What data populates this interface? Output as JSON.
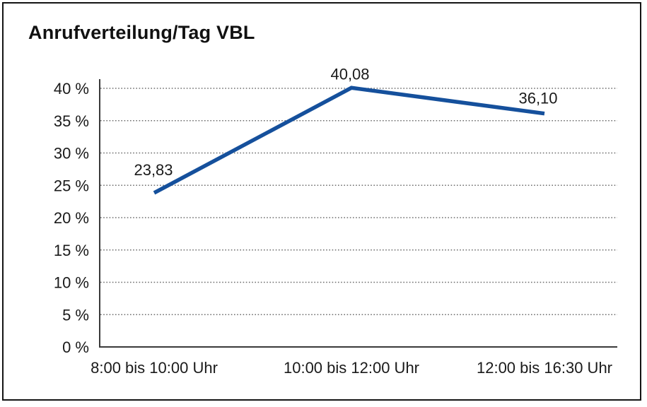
{
  "chart_data": {
    "type": "line",
    "title": "Anrufverteilung/Tag VBL",
    "categories": [
      "8:00 bis 10:00 Uhr",
      "10:00 bis 12:00 Uhr",
      "12:00 bis 16:30 Uhr"
    ],
    "series": [
      {
        "values": [
          23.83,
          40.08,
          36.1
        ]
      }
    ],
    "data_labels": [
      "23,83",
      "40,08",
      "36,10"
    ],
    "y_ticks": [
      "0 %",
      "5 %",
      "10 %",
      "15 %",
      "20 %",
      "25 %",
      "30 %",
      "35 %",
      "40 %"
    ],
    "y_tick_values": [
      0,
      5,
      10,
      15,
      20,
      25,
      30,
      35,
      40
    ],
    "ylim": [
      0,
      40
    ],
    "xlabel": "",
    "ylabel": "",
    "legend": "none",
    "grid": "horizontal-dotted",
    "markers": "none",
    "colors": {
      "line": "#15509c",
      "text": "#1a1a1a",
      "axis": "#3a3a3a",
      "grid": "#6e6e6e",
      "background": "#ffffff",
      "border": "#141414"
    }
  }
}
